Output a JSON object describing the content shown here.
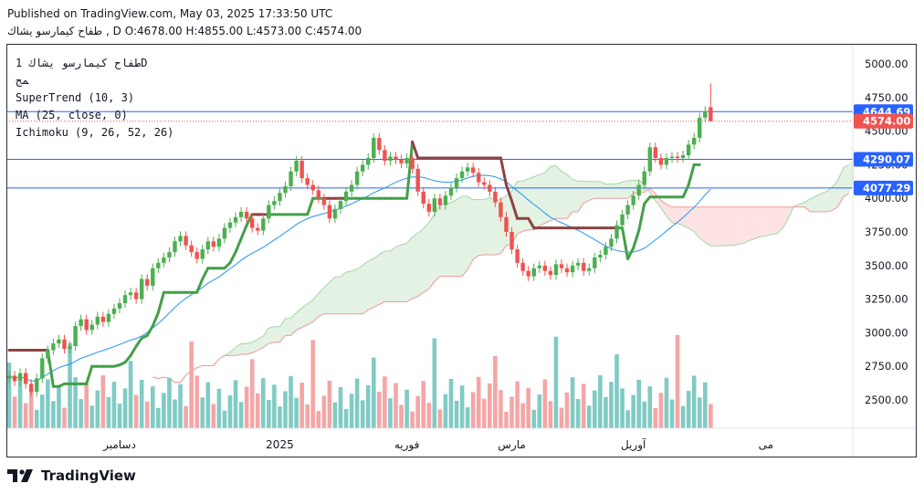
{
  "header": {
    "published": "Published on TradingView.com, May 03, 2025 17:33:50 UTC",
    "symbol_line": "ﻃﻔﺎﺡ ﻛﻴﻤﺎﺭﺳﻮ ﻳﺸﺎﻙ , D O:4678.00 H:4855.00 L:4573.00 C:4574.00"
  },
  "legend": {
    "symbol": "ﻃﻔﺎﺡ ﻛﻴﻤﺎﺭﺳﻮ ﻳﺸﺎﻙ 1D",
    "sub": "ﻤﺞ",
    "supertrend": "SuperTrend (10, 3)",
    "ma": "MA (25, close, 0)",
    "ichimoku": "Ichimoku (9, 26, 52, 26)"
  },
  "brand": {
    "name": "TradingView"
  },
  "colors": {
    "up": "#4caf50",
    "down": "#ef5350",
    "volume_up": "#80cbc4",
    "volume_down": "#f4a6a6",
    "supertrend_up": "#43a047",
    "supertrend_down": "#8d4343",
    "ma": "#2196f3",
    "hline": "#2962ff",
    "cloud_bull": "#e3f2e3",
    "cloud_bear": "#fde3e3"
  },
  "chart_data": {
    "type": "candlestick",
    "title": "ﻃﻔﺎﺡ ﻛﻴﻤﺎﺭﺳﻮ ﻳﺸﺎﻙ 1D",
    "ylim": [
      2280,
      5100
    ],
    "y_ticks": [
      "5000.00",
      "4750.00",
      "4500.00",
      "4250.00",
      "4000.00",
      "3750.00",
      "3500.00",
      "3250.00",
      "3000.00",
      "2750.00",
      "2500.00"
    ],
    "x_ticks": [
      {
        "label": "دسامبر",
        "index": 20
      },
      {
        "label": "2025",
        "index": 49
      },
      {
        "label": "فوریه",
        "index": 72
      },
      {
        "label": "مارس",
        "index": 91
      },
      {
        "label": "آوریل",
        "index": 113
      },
      {
        "label": "می",
        "index": 137
      }
    ],
    "price_lines": [
      {
        "value": 4644.69,
        "label": "4644.69",
        "color": "#2962ff"
      },
      {
        "value": 4290.07,
        "label": "4290.07",
        "color": "#2962ff"
      },
      {
        "value": 4077.29,
        "label": "4077.29",
        "color": "#2962ff"
      }
    ],
    "last_price": {
      "value": 4574.0,
      "label": "4574.00",
      "color": "#ef5350"
    },
    "last_candle": {
      "open": 4678.0,
      "high": 4855.0,
      "low": 4573.0,
      "close": 4574.0
    },
    "candles_close": [
      2680,
      2640,
      2700,
      2620,
      2560,
      2660,
      2810,
      2870,
      2920,
      2950,
      2880,
      2900,
      3050,
      3100,
      3020,
      3060,
      3120,
      3080,
      3140,
      3180,
      3220,
      3280,
      3300,
      3250,
      3400,
      3350,
      3480,
      3520,
      3560,
      3600,
      3680,
      3720,
      3650,
      3600,
      3550,
      3620,
      3680,
      3640,
      3700,
      3780,
      3820,
      3860,
      3900,
      3850,
      3780,
      3760,
      3850,
      3950,
      3980,
      4040,
      4090,
      4200,
      4280,
      4150,
      4100,
      4060,
      4000,
      3950,
      3850,
      3920,
      3980,
      4050,
      4100,
      4200,
      4250,
      4300,
      4450,
      4360,
      4280,
      4310,
      4290,
      4260,
      4300,
      4220,
      4050,
      3960,
      3900,
      4000,
      3950,
      4020,
      4080,
      4150,
      4200,
      4230,
      4190,
      4120,
      4100,
      4050,
      3970,
      3860,
      3750,
      3620,
      3520,
      3460,
      3420,
      3480,
      3500,
      3460,
      3430,
      3510,
      3480,
      3450,
      3500,
      3520,
      3460,
      3480,
      3560,
      3580,
      3640,
      3700,
      3800,
      3880,
      3950,
      4020,
      4100,
      4200,
      4380,
      4300,
      4250,
      4300,
      4310,
      4300,
      4320,
      4400,
      4450,
      4600,
      4650,
      4574
    ],
    "supertrend_levels": [
      2870,
      2870,
      2870,
      2870,
      2870,
      2870,
      2870,
      2870,
      2600,
      2600,
      2620,
      2620,
      2620,
      2620,
      2620,
      2750,
      2750,
      2750,
      2750,
      2750,
      2760,
      2780,
      2830,
      2900,
      2960,
      2980,
      3050,
      3150,
      3300,
      3300,
      3300,
      3300,
      3300,
      3300,
      3300,
      3400,
      3480,
      3480,
      3480,
      3480,
      3520,
      3600,
      3700,
      3800,
      3880,
      3880,
      3880,
      3880,
      3880,
      3880,
      3880,
      3880,
      3880,
      3880,
      3880,
      4000,
      4000,
      4000,
      4000,
      4000,
      4000,
      4000,
      4000,
      4000,
      4000,
      4000,
      4000,
      4000,
      4000,
      4000,
      4000,
      4000,
      4000,
      4420,
      4300,
      4300,
      4300,
      4300,
      4300,
      4300,
      4300,
      4300,
      4300,
      4300,
      4300,
      4300,
      4300,
      4300,
      4300,
      4300,
      4100,
      3980,
      3850,
      3850,
      3850,
      3780,
      3780,
      3780,
      3780,
      3780,
      3780,
      3780,
      3780,
      3780,
      3780,
      3780,
      3780,
      3780,
      3780,
      3780,
      3780,
      3780,
      3550,
      3630,
      3760,
      3960,
      4010,
      4010,
      4010,
      4010,
      4010,
      4010,
      4010,
      4100,
      4250,
      4250
    ]
  }
}
